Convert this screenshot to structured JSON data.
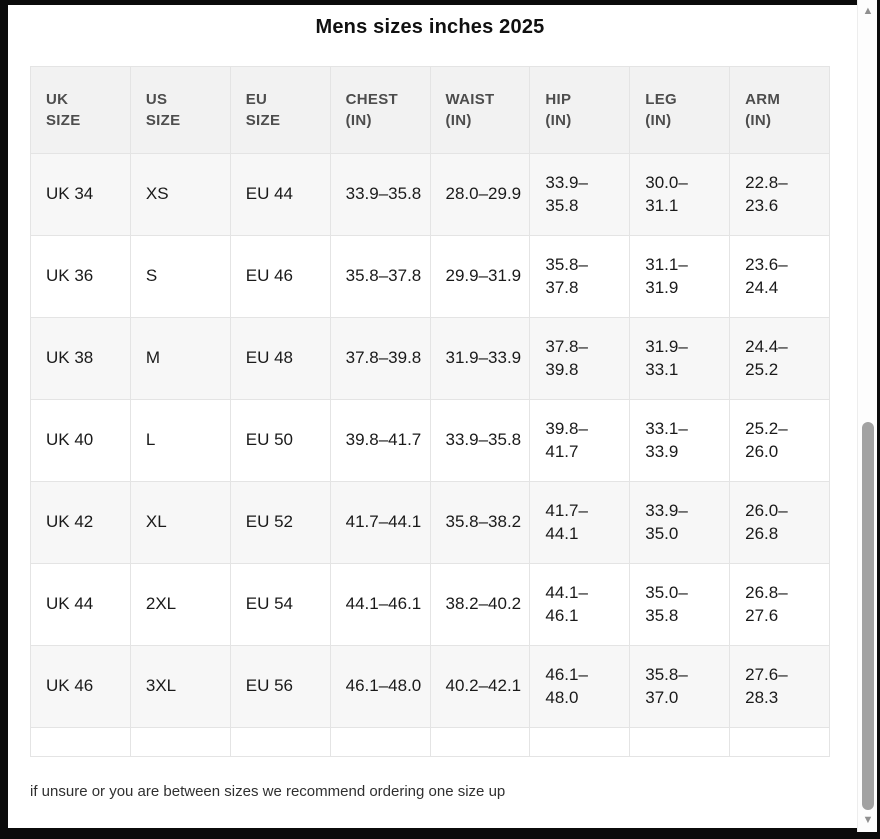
{
  "title": "Mens sizes inches 2025",
  "footer_note": "if unsure or you are between sizes we recommend ordering one size up",
  "table": {
    "columns": [
      {
        "id": "uk-size",
        "label": "UK SIZE",
        "label_lines": [
          "UK",
          "SIZE"
        ]
      },
      {
        "id": "us-size",
        "label": "US SIZE",
        "label_lines": [
          "US",
          "SIZE"
        ]
      },
      {
        "id": "eu-size",
        "label": "EU SIZE",
        "label_lines": [
          "EU",
          "SIZE"
        ]
      },
      {
        "id": "chest",
        "label": "CHEST (IN)",
        "label_lines": [
          "CHEST",
          "(IN)"
        ]
      },
      {
        "id": "waist",
        "label": "WAIST (IN)",
        "label_lines": [
          "WAIST",
          "(IN)"
        ]
      },
      {
        "id": "hip",
        "label": "HIP (IN)",
        "label_lines": [
          "HIP",
          "(IN)"
        ]
      },
      {
        "id": "leg",
        "label": "LEG (IN)",
        "label_lines": [
          "LEG",
          "(IN)"
        ]
      },
      {
        "id": "arm",
        "label": "ARM (IN)",
        "label_lines": [
          "ARM",
          "(IN)"
        ]
      }
    ],
    "rows": [
      [
        "UK 34",
        "XS",
        "EU 44",
        "33.9–35.8",
        "28.0–29.9",
        "33.9–35.8",
        "30.0–31.1",
        "22.8–23.6"
      ],
      [
        "UK 36",
        "S",
        "EU 46",
        "35.8–37.8",
        "29.9–31.9",
        "35.8–37.8",
        "31.1–31.9",
        "23.6–24.4"
      ],
      [
        "UK 38",
        "M",
        "EU 48",
        "37.8–39.8",
        "31.9–33.9",
        "37.8–39.8",
        "31.9–33.1",
        "24.4–25.2"
      ],
      [
        "UK 40",
        "L",
        "EU 50",
        "39.8–41.7",
        "33.9–35.8",
        "39.8–41.7",
        "33.1–33.9",
        "25.2–26.0"
      ],
      [
        "UK 42",
        "XL",
        "EU 52",
        "41.7–44.1",
        "35.8–38.2",
        "41.7–44.1",
        "33.9–35.0",
        "26.0–26.8"
      ],
      [
        "UK 44",
        "2XL",
        "EU 54",
        "44.1–46.1",
        "38.2–40.2",
        "44.1–46.1",
        "35.0–35.8",
        "26.8–27.6"
      ],
      [
        "UK 46",
        "3XL",
        "EU 56",
        "46.1–48.0",
        "40.2–42.1",
        "46.1–48.0",
        "35.8–37.0",
        "27.6–28.3"
      ]
    ],
    "has_trailing_empty_row": true,
    "wrap_after_dash_column_ids": [
      "hip",
      "leg",
      "arm"
    ]
  },
  "scrollbar": {
    "up_icon": "▲",
    "down_icon": "▼"
  },
  "colors": {
    "page_background": "#ffffff",
    "outer_background": "#0b0b0b",
    "header_background": "#f2f2f2",
    "alt_row_background": "#f7f7f7",
    "border": "#e4e4e4",
    "header_text": "#4d4d4d",
    "cell_text": "#1a1a1a",
    "scrollbar_thumb": "#a2a2a2"
  }
}
